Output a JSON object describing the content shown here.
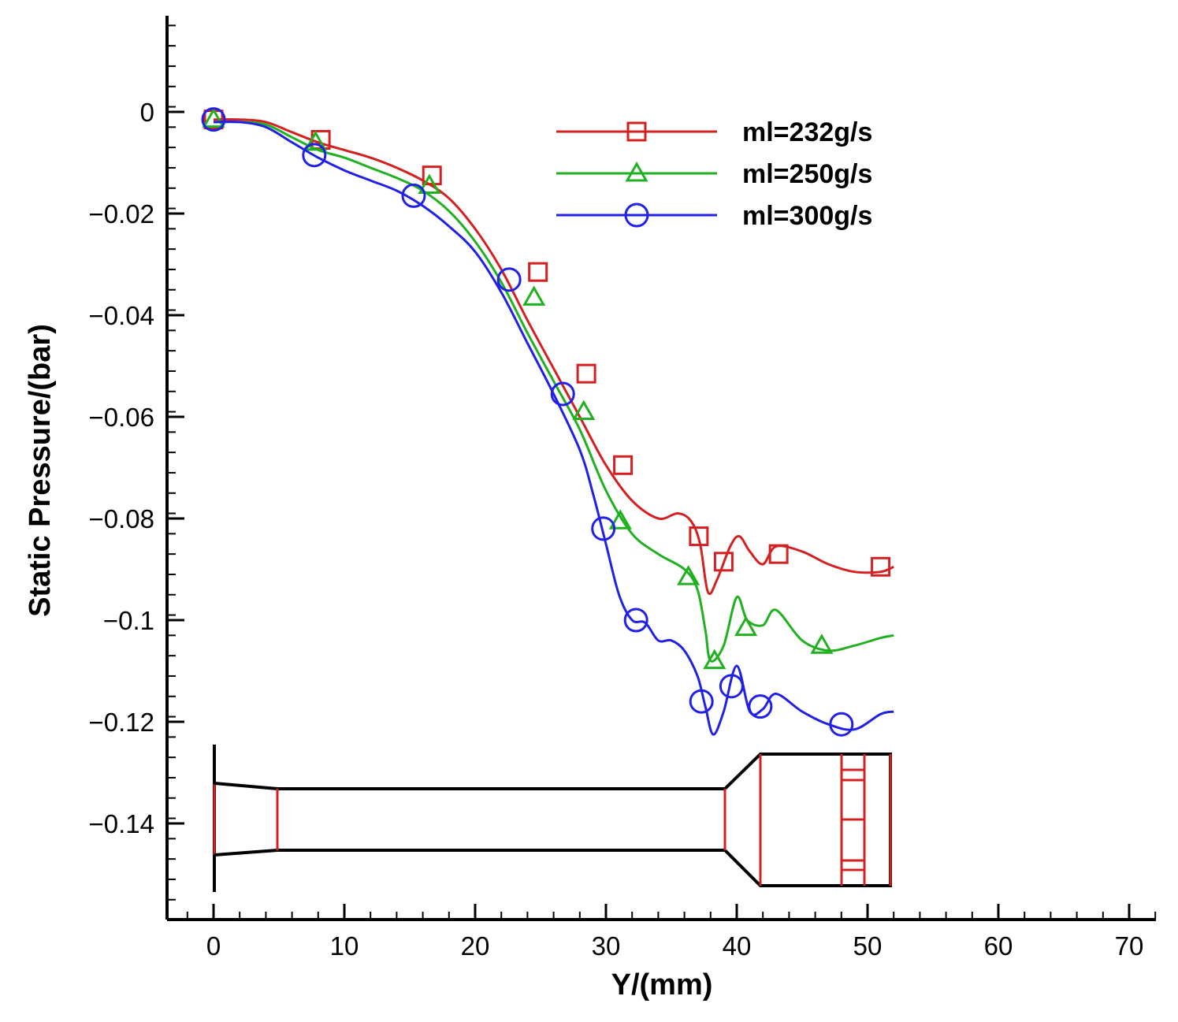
{
  "chart_data": {
    "type": "line",
    "title": "",
    "xlabel": "Y/(mm)",
    "ylabel": "Static Pressure/(bar)",
    "xlim": [
      -3.5,
      72
    ],
    "ylim": [
      -0.155,
      0.02
    ],
    "x_ticks": [
      0,
      10,
      20,
      30,
      40,
      50,
      60,
      70
    ],
    "x_tick_labels": [
      "0",
      "10",
      "20",
      "30",
      "40",
      "50",
      "60",
      "70"
    ],
    "y_ticks": [
      0,
      -0.02,
      -0.04,
      -0.06,
      -0.08,
      -0.1,
      -0.12,
      -0.14
    ],
    "y_tick_labels": [
      "0",
      "−0.02",
      "−0.04",
      "−0.06",
      "−0.08",
      "−0.1",
      "−0.12",
      "−0.14"
    ],
    "grid": false,
    "legend_position": "top-right",
    "series": [
      {
        "name": "ml=232g/s",
        "color": "#d42020",
        "marker": "square",
        "x": [
          0,
          2,
          4,
          6,
          8,
          10,
          12,
          14,
          16,
          18,
          20,
          22,
          24,
          26,
          28,
          30,
          32,
          34,
          35.5,
          36.5,
          37.2,
          37.8,
          38.5,
          39.5,
          40.2,
          41,
          42,
          43,
          45,
          47,
          49,
          51,
          52
        ],
        "y": [
          -0.0015,
          -0.0015,
          -0.002,
          -0.004,
          -0.006,
          -0.0075,
          -0.009,
          -0.011,
          -0.0135,
          -0.017,
          -0.023,
          -0.031,
          -0.041,
          -0.0505,
          -0.06,
          -0.0695,
          -0.0765,
          -0.08,
          -0.079,
          -0.0805,
          -0.085,
          -0.0945,
          -0.092,
          -0.0855,
          -0.0835,
          -0.0865,
          -0.089,
          -0.0855,
          -0.0865,
          -0.089,
          -0.0905,
          -0.0905,
          -0.0895
        ],
        "marker_x": [
          0,
          8.2,
          16.7,
          24.8,
          28.5,
          31.3,
          37.1,
          39,
          43.2,
          51
        ],
        "marker_y": [
          -0.0015,
          -0.0055,
          -0.0125,
          -0.0315,
          -0.0515,
          -0.0695,
          -0.0835,
          -0.0885,
          -0.087,
          -0.0895
        ]
      },
      {
        "name": "ml=250g/s",
        "color": "#20b020",
        "marker": "triangle",
        "x": [
          0,
          2,
          4,
          6,
          8,
          10,
          12,
          14,
          16,
          18,
          20,
          22,
          24,
          26,
          28,
          30,
          32,
          34,
          36,
          37,
          37.6,
          38,
          39,
          40,
          40.8,
          42,
          43,
          45,
          47,
          49,
          51,
          52
        ],
        "y": [
          -0.002,
          -0.002,
          -0.0025,
          -0.005,
          -0.0075,
          -0.009,
          -0.011,
          -0.013,
          -0.0155,
          -0.0195,
          -0.0255,
          -0.0335,
          -0.0435,
          -0.053,
          -0.0625,
          -0.0745,
          -0.083,
          -0.087,
          -0.09,
          -0.094,
          -0.102,
          -0.108,
          -0.105,
          -0.0955,
          -0.1,
          -0.101,
          -0.098,
          -0.104,
          -0.106,
          -0.105,
          -0.1035,
          -0.103
        ],
        "marker_x": [
          0,
          7.8,
          16.5,
          24.5,
          28.3,
          31.1,
          36.3,
          38.3,
          40.7,
          46.5
        ],
        "marker_y": [
          -0.0015,
          -0.006,
          -0.0145,
          -0.0365,
          -0.059,
          -0.0805,
          -0.0915,
          -0.108,
          -0.1015,
          -0.105
        ]
      },
      {
        "name": "ml=300g/s",
        "color": "#2020e8",
        "marker": "circle",
        "x": [
          0,
          2,
          4,
          6,
          8,
          10,
          12,
          14,
          16,
          18,
          20,
          22,
          24,
          26,
          28,
          29,
          30,
          31,
          32,
          33,
          34,
          35,
          36,
          37,
          37.6,
          38.2,
          39,
          40,
          41,
          42,
          43,
          45,
          47,
          49,
          51,
          52
        ],
        "y": [
          -0.002,
          -0.002,
          -0.003,
          -0.006,
          -0.009,
          -0.0115,
          -0.0135,
          -0.0155,
          -0.0185,
          -0.0225,
          -0.0275,
          -0.0355,
          -0.0455,
          -0.0555,
          -0.0665,
          -0.075,
          -0.085,
          -0.095,
          -0.1,
          -0.1005,
          -0.104,
          -0.104,
          -0.106,
          -0.111,
          -0.117,
          -0.1225,
          -0.118,
          -0.109,
          -0.118,
          -0.1175,
          -0.1145,
          -0.118,
          -0.1205,
          -0.1215,
          -0.1185,
          -0.118
        ],
        "marker_x": [
          0,
          7.7,
          15.3,
          22.6,
          26.7,
          29.8,
          32.3,
          37.3,
          39.6,
          41.8,
          48
        ],
        "marker_y": [
          -0.0015,
          -0.0085,
          -0.0165,
          -0.033,
          -0.0555,
          -0.082,
          -0.1,
          -0.116,
          -0.113,
          -0.117,
          -0.1205
        ]
      }
    ]
  }
}
